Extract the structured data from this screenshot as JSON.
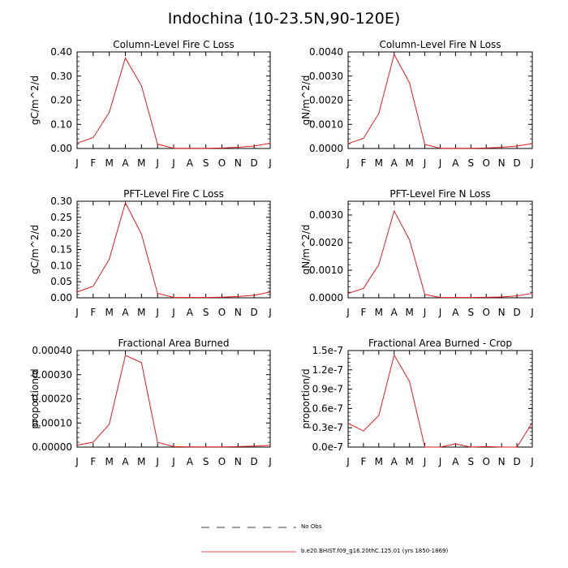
{
  "title": "Indochina (10-23.5N,90-120E)",
  "legend": {
    "obs_label": "No Obs",
    "model_label": "b.e20.BHIST.f09_g16.20thC.125.01 (yrs 1850-1869)",
    "model_color": "#e8191c",
    "obs_color": "#000000"
  },
  "chart_data": [
    {
      "type": "line",
      "title": "Column-Level Fire C Loss",
      "ylabel": "gC/m^2/d",
      "xlabel": "",
      "categories": [
        "J",
        "F",
        "M",
        "A",
        "M",
        "J",
        "J",
        "A",
        "S",
        "O",
        "N",
        "D",
        "J"
      ],
      "ylim": [
        0,
        0.4
      ],
      "yticks": [
        0,
        0.1,
        0.2,
        0.3,
        0.4
      ],
      "ytick_labels": [
        "0.00",
        "0.10",
        "0.20",
        "0.30",
        "0.40"
      ],
      "series": [
        {
          "values": [
            0.022,
            0.045,
            0.15,
            0.375,
            0.26,
            0.018,
            0.001,
            0.001,
            0.001,
            0.002,
            0.005,
            0.01,
            0.022
          ]
        }
      ]
    },
    {
      "type": "line",
      "title": "Column-Level Fire N Loss",
      "ylabel": "gN/m^2/d",
      "xlabel": "",
      "categories": [
        "J",
        "F",
        "M",
        "A",
        "M",
        "J",
        "J",
        "A",
        "S",
        "O",
        "N",
        "D",
        "J"
      ],
      "ylim": [
        0,
        0.004
      ],
      "yticks": [
        0,
        0.001,
        0.002,
        0.003,
        0.004
      ],
      "ytick_labels": [
        "0.0000",
        "0.0010",
        "0.0020",
        "0.0030",
        "0.0040"
      ],
      "series": [
        {
          "values": [
            0.0002,
            0.00042,
            0.00145,
            0.0039,
            0.00272,
            0.00017,
            1e-05,
            1e-05,
            1e-05,
            2e-05,
            5e-05,
            0.0001,
            0.0002
          ]
        }
      ]
    },
    {
      "type": "line",
      "title": "PFT-Level Fire C Loss",
      "ylabel": "gC/m^2/d",
      "xlabel": "",
      "categories": [
        "J",
        "F",
        "M",
        "A",
        "M",
        "J",
        "J",
        "A",
        "S",
        "O",
        "N",
        "D",
        "J"
      ],
      "ylim": [
        0,
        0.3
      ],
      "yticks": [
        0,
        0.05,
        0.1,
        0.15,
        0.2,
        0.25,
        0.3
      ],
      "ytick_labels": [
        "0.00",
        "0.05",
        "0.10",
        "0.15",
        "0.20",
        "0.25",
        "0.30"
      ],
      "series": [
        {
          "values": [
            0.018,
            0.036,
            0.12,
            0.295,
            0.198,
            0.014,
            0.001,
            0.001,
            0.001,
            0.002,
            0.004,
            0.008,
            0.018
          ]
        }
      ]
    },
    {
      "type": "line",
      "title": "PFT-Level Fire N Loss",
      "ylabel": "gN/m^2/d",
      "xlabel": "",
      "categories": [
        "J",
        "F",
        "M",
        "A",
        "M",
        "J",
        "J",
        "A",
        "S",
        "O",
        "N",
        "D",
        "J"
      ],
      "ylim": [
        0,
        0.0035
      ],
      "yticks": [
        0,
        0.001,
        0.002,
        0.003
      ],
      "ytick_labels": [
        "0.0000",
        "0.0010",
        "0.0020",
        "0.0030"
      ],
      "series": [
        {
          "values": [
            0.00016,
            0.00034,
            0.0012,
            0.00315,
            0.0021,
            0.00012,
            1e-05,
            1e-05,
            1e-05,
            2e-05,
            3e-05,
            7e-05,
            0.00016
          ]
        }
      ]
    },
    {
      "type": "line",
      "title": "Fractional Area Burned",
      "ylabel": "proportion/d",
      "xlabel": "",
      "categories": [
        "J",
        "F",
        "M",
        "A",
        "M",
        "J",
        "J",
        "A",
        "S",
        "O",
        "N",
        "D",
        "J"
      ],
      "ylim": [
        0,
        0.0004
      ],
      "yticks": [
        0,
        0.0001,
        0.0002,
        0.0003,
        0.0004
      ],
      "ytick_labels": [
        "0.00000",
        "0.00010",
        "0.00020",
        "0.00030",
        "0.00040"
      ],
      "series": [
        {
          "values": [
            8e-06,
            2e-05,
            9.5e-05,
            0.00038,
            0.00035,
            2e-05,
            2e-06,
            1e-06,
            1e-06,
            1e-06,
            2e-06,
            4e-06,
            7e-06
          ]
        }
      ]
    },
    {
      "type": "line",
      "title": "Fractional Area Burned - Crop",
      "ylabel": "proportion/d",
      "xlabel": "",
      "categories": [
        "J",
        "F",
        "M",
        "A",
        "M",
        "J",
        "J",
        "A",
        "S",
        "O",
        "N",
        "D",
        "J"
      ],
      "ylim": [
        0,
        1.5e-07
      ],
      "yticks": [
        0,
        3e-08,
        6e-08,
        9e-08,
        1.2e-07,
        1.5e-07
      ],
      "ytick_labels": [
        "0.0e-7",
        "0.3e-7",
        "0.6e-7",
        "0.9e-7",
        "1.2e-7",
        "1.5e-7"
      ],
      "series": [
        {
          "values": [
            3.7e-08,
            2.5e-08,
            4.9e-08,
            1.43e-07,
            1.02e-07,
            0,
            0,
            5e-09,
            0,
            1e-09,
            0,
            0,
            3.8e-08
          ]
        }
      ]
    }
  ]
}
